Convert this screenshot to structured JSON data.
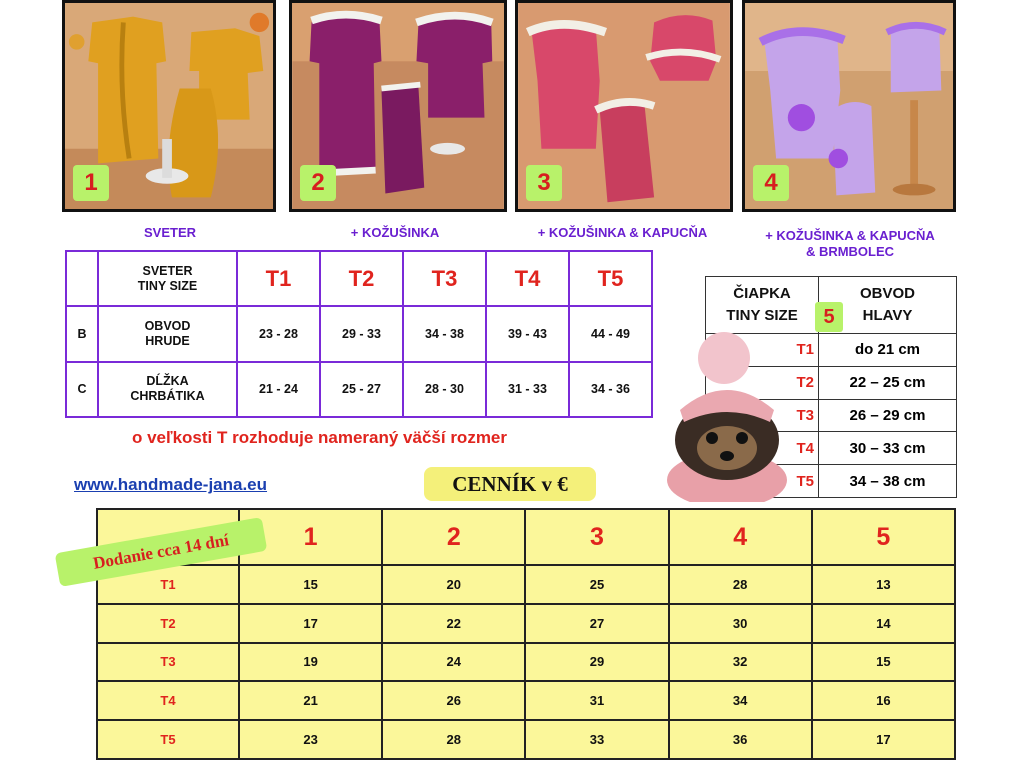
{
  "photos": [
    {
      "number": "1",
      "caption": "SVETER"
    },
    {
      "number": "2",
      "caption": "+ KOŽUŠINKA"
    },
    {
      "number": "3",
      "caption": "+ KOŽUŠINKA & KAPUCŇA"
    },
    {
      "number": "4",
      "caption_line1": "+ KOŽUŠINKA & KAPUCŇA",
      "caption_line2": "& BRMBOLEC"
    }
  ],
  "size_table": {
    "header_line1": "SVETER",
    "header_line2": "TINY SIZE",
    "sizes": [
      "T1",
      "T2",
      "T3",
      "T4",
      "T5"
    ],
    "rows": [
      {
        "key": "B",
        "label_line1": "OBVOD",
        "label_line2": "HRUDE",
        "values": [
          "23 - 28",
          "29 - 33",
          "34 - 38",
          "39 - 43",
          "44 - 49"
        ]
      },
      {
        "key": "C",
        "label_line1": "DĹŽKA",
        "label_line2": "CHRBÁTIKA",
        "values": [
          "21 - 24",
          "25 - 27",
          "28 - 30",
          "31 - 33",
          "34 - 36"
        ]
      }
    ]
  },
  "note": "o veľkosti T rozhoduje nameraný väčší rozmer",
  "website": "www.handmade-jana.eu",
  "price_title": "CENNÍK v €",
  "hat_table": {
    "badge": "5",
    "header_left_line1": "ČIAPKA",
    "header_left_line2": "TINY SIZE",
    "header_right_line1": "OBVOD",
    "header_right_line2": "HLAVY",
    "rows": [
      {
        "size": "T1",
        "value": "do 21 cm"
      },
      {
        "size": "T2",
        "value": "22 – 25 cm"
      },
      {
        "size": "T3",
        "value": "26 – 29 cm"
      },
      {
        "size": "T4",
        "value": "30 – 33 cm"
      },
      {
        "size": "T5",
        "value": "34 – 38 cm"
      }
    ]
  },
  "delivery": "Dodanie cca 14 dní",
  "price_table": {
    "columns": [
      "1",
      "2",
      "3",
      "4",
      "5"
    ],
    "rows": [
      {
        "size": "T1",
        "prices": [
          "15",
          "20",
          "25",
          "28",
          "13"
        ]
      },
      {
        "size": "T2",
        "prices": [
          "17",
          "22",
          "27",
          "30",
          "14"
        ]
      },
      {
        "size": "T3",
        "prices": [
          "19",
          "24",
          "29",
          "32",
          "15"
        ]
      },
      {
        "size": "T4",
        "prices": [
          "21",
          "26",
          "31",
          "34",
          "16"
        ]
      },
      {
        "size": "T5",
        "prices": [
          "23",
          "28",
          "33",
          "36",
          "17"
        ]
      }
    ]
  },
  "colors": {
    "accent_red": "#e0241e",
    "caption_purple": "#6a1fd0",
    "badge_green": "#b8f26a",
    "table_yellow": "#fbf79a",
    "link_blue": "#1a3fb0"
  }
}
